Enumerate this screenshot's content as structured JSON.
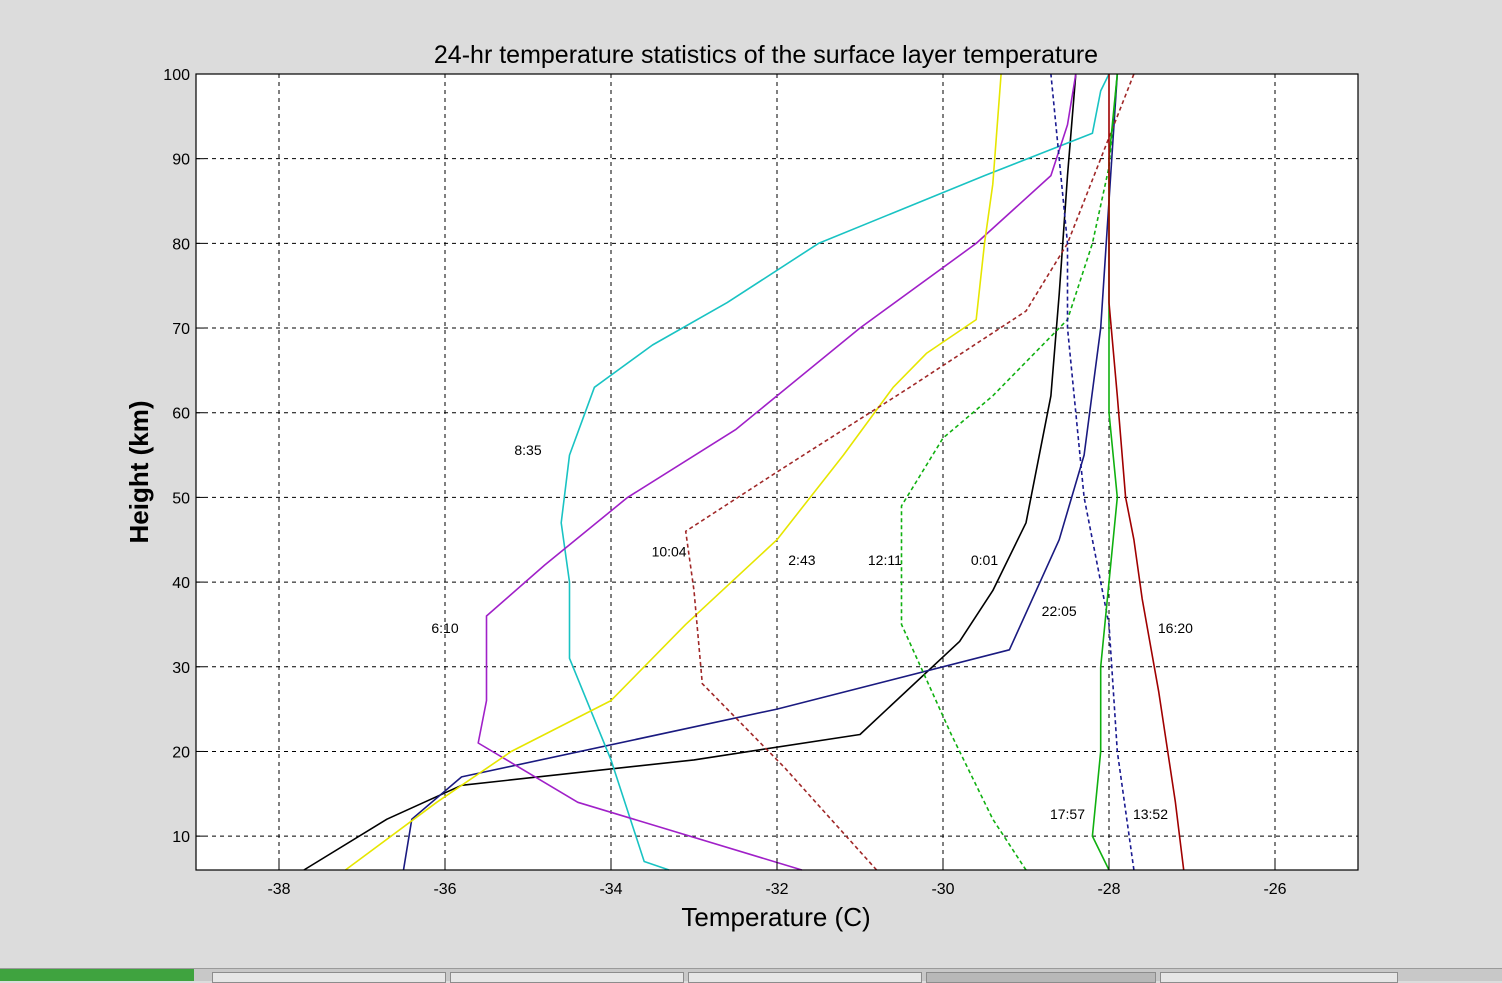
{
  "chart_data": {
    "type": "line",
    "title": "24-hr temperature statistics of the surface layer temperature",
    "xlabel": "Temperature (C)",
    "ylabel": "Height (km)",
    "xlim": [
      -39,
      -25
    ],
    "ylim": [
      6,
      100
    ],
    "xticks": [
      -38,
      -36,
      -34,
      -32,
      -30,
      -28,
      -26
    ],
    "yticks": [
      10,
      20,
      30,
      40,
      50,
      60,
      70,
      80,
      90,
      100
    ],
    "grid": true,
    "series": [
      {
        "name": "0:01",
        "color": "#000000",
        "style": "solid",
        "points": [
          [
            -37.7,
            6
          ],
          [
            -36.7,
            12
          ],
          [
            -35.8,
            16
          ],
          [
            -33.0,
            19
          ],
          [
            -31.0,
            22
          ],
          [
            -29.8,
            33
          ],
          [
            -29.4,
            39
          ],
          [
            -29.0,
            47
          ],
          [
            -28.7,
            62
          ],
          [
            -28.6,
            74
          ],
          [
            -28.5,
            88
          ],
          [
            -28.4,
            100
          ]
        ]
      },
      {
        "name": "22:05",
        "color": "#1a1a80",
        "style": "solid",
        "points": [
          [
            -36.5,
            6
          ],
          [
            -36.4,
            12
          ],
          [
            -35.8,
            17
          ],
          [
            -32.0,
            25
          ],
          [
            -29.2,
            32
          ],
          [
            -28.6,
            45
          ],
          [
            -28.3,
            55
          ],
          [
            -28.1,
            70
          ],
          [
            -28.0,
            85
          ],
          [
            -27.9,
            100
          ]
        ]
      },
      {
        "name": "8:35",
        "color": "#19c3c3",
        "style": "solid",
        "points": [
          [
            -33.3,
            6
          ],
          [
            -33.6,
            7
          ],
          [
            -34.0,
            19
          ],
          [
            -34.5,
            31
          ],
          [
            -34.5,
            40
          ],
          [
            -34.6,
            47
          ],
          [
            -34.5,
            55
          ],
          [
            -34.2,
            63
          ],
          [
            -33.5,
            68
          ],
          [
            -32.6,
            73
          ],
          [
            -31.5,
            80
          ],
          [
            -29.5,
            88
          ],
          [
            -28.2,
            93
          ],
          [
            -28.1,
            98
          ],
          [
            -28.0,
            100
          ]
        ]
      },
      {
        "name": "6:10",
        "color": "#a020c8",
        "style": "solid",
        "points": [
          [
            -31.7,
            6
          ],
          [
            -34.4,
            14
          ],
          [
            -35.6,
            21
          ],
          [
            -35.5,
            26
          ],
          [
            -35.5,
            36
          ],
          [
            -34.8,
            42
          ],
          [
            -33.8,
            50
          ],
          [
            -32.5,
            58
          ],
          [
            -31.0,
            70
          ],
          [
            -29.6,
            80
          ],
          [
            -28.7,
            88
          ],
          [
            -28.5,
            94
          ],
          [
            -28.4,
            100
          ]
        ]
      },
      {
        "name": "2:43",
        "color": "#e6e600",
        "style": "solid",
        "points": [
          [
            -37.2,
            6
          ],
          [
            -36.1,
            14
          ],
          [
            -35.2,
            20
          ],
          [
            -34.0,
            26
          ],
          [
            -33.1,
            35
          ],
          [
            -32.0,
            45
          ],
          [
            -31.2,
            55
          ],
          [
            -30.6,
            63
          ],
          [
            -30.2,
            67
          ],
          [
            -29.6,
            71
          ],
          [
            -29.5,
            80
          ],
          [
            -29.4,
            87
          ],
          [
            -29.3,
            100
          ]
        ]
      },
      {
        "name": "10:04",
        "color": "#a02828",
        "style": "dotted",
        "points": [
          [
            -30.8,
            6
          ],
          [
            -31.9,
            18
          ],
          [
            -32.9,
            28
          ],
          [
            -33.0,
            39
          ],
          [
            -33.1,
            46
          ],
          [
            -32.0,
            53
          ],
          [
            -30.4,
            63
          ],
          [
            -29.0,
            72
          ],
          [
            -28.5,
            80
          ],
          [
            -28.1,
            90
          ],
          [
            -27.7,
            100
          ]
        ]
      },
      {
        "name": "12:11",
        "color": "#10b010",
        "style": "dotted",
        "points": [
          [
            -29.0,
            6
          ],
          [
            -29.4,
            12
          ],
          [
            -29.9,
            22
          ],
          [
            -30.5,
            35
          ],
          [
            -30.5,
            49
          ],
          [
            -30.0,
            57
          ],
          [
            -29.4,
            62
          ],
          [
            -28.5,
            71
          ],
          [
            -28.2,
            80
          ],
          [
            -28.0,
            89
          ],
          [
            -27.9,
            100
          ]
        ]
      },
      {
        "name": "13:52",
        "color": "#1a1a90",
        "style": "dotted",
        "points": [
          [
            -27.7,
            6
          ],
          [
            -27.9,
            20
          ],
          [
            -28.0,
            35
          ],
          [
            -28.3,
            50
          ],
          [
            -28.4,
            60
          ],
          [
            -28.5,
            70
          ],
          [
            -28.5,
            80
          ],
          [
            -28.6,
            90
          ],
          [
            -28.7,
            100
          ]
        ]
      },
      {
        "name": "17:57",
        "color": "#10b010",
        "style": "solid",
        "points": [
          [
            -28.0,
            6
          ],
          [
            -28.2,
            10
          ],
          [
            -28.1,
            20
          ],
          [
            -28.1,
            30
          ],
          [
            -28.0,
            40
          ],
          [
            -27.9,
            50
          ],
          [
            -28.0,
            60
          ],
          [
            -28.0,
            70
          ],
          [
            -28.0,
            80
          ],
          [
            -28.0,
            90
          ],
          [
            -27.9,
            100
          ]
        ]
      },
      {
        "name": "16:20",
        "color": "#a00000",
        "style": "solid",
        "points": [
          [
            -27.1,
            6
          ],
          [
            -27.2,
            14
          ],
          [
            -27.4,
            27
          ],
          [
            -27.6,
            38
          ],
          [
            -27.7,
            45
          ],
          [
            -27.8,
            50
          ],
          [
            -27.9,
            62
          ],
          [
            -28.0,
            73
          ],
          [
            -28.0,
            85
          ],
          [
            -28.0,
            92
          ],
          [
            -28.0,
            100
          ]
        ]
      }
    ],
    "annotations": [
      {
        "text": "8:35",
        "x": -35.0,
        "y": 55
      },
      {
        "text": "10:04",
        "x": -33.3,
        "y": 43
      },
      {
        "text": "2:43",
        "x": -31.7,
        "y": 42
      },
      {
        "text": "12:11",
        "x": -30.7,
        "y": 42
      },
      {
        "text": "0:01",
        "x": -29.5,
        "y": 42
      },
      {
        "text": "6:10",
        "x": -36.0,
        "y": 34
      },
      {
        "text": "22:05",
        "x": -28.6,
        "y": 36
      },
      {
        "text": "16:20",
        "x": -27.2,
        "y": 34
      },
      {
        "text": "17:57",
        "x": -28.5,
        "y": 12
      },
      {
        "text": "13:52",
        "x": -27.5,
        "y": 12
      }
    ]
  }
}
